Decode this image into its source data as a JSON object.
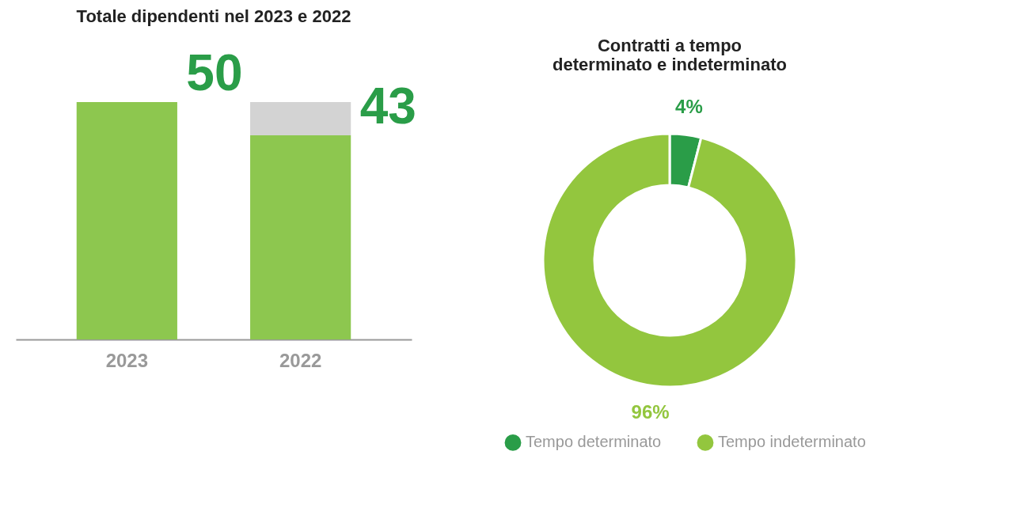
{
  "chart_data": [
    {
      "type": "bar",
      "title": "Totale dipendenti nel 2023 e 2022",
      "categories": [
        "2023",
        "2022"
      ],
      "stacked": true,
      "series": [
        {
          "color": "#8dc74f",
          "values": [
            50,
            43
          ],
          "value_labels": [
            "50",
            "43"
          ]
        },
        {
          "color": "#d3d3d3",
          "values": [
            0,
            7
          ]
        }
      ]
    },
    {
      "type": "donut",
      "title": "Contratti a tempo\ndeterminato e indeterminato",
      "categories": [
        "Tempo determinato",
        "Tempo indeterminato"
      ],
      "values": [
        4,
        96
      ],
      "colors": [
        "#2a9d48",
        "#93c63e"
      ],
      "value_labels": [
        "4%",
        "96%"
      ],
      "legend": "bottom"
    }
  ]
}
